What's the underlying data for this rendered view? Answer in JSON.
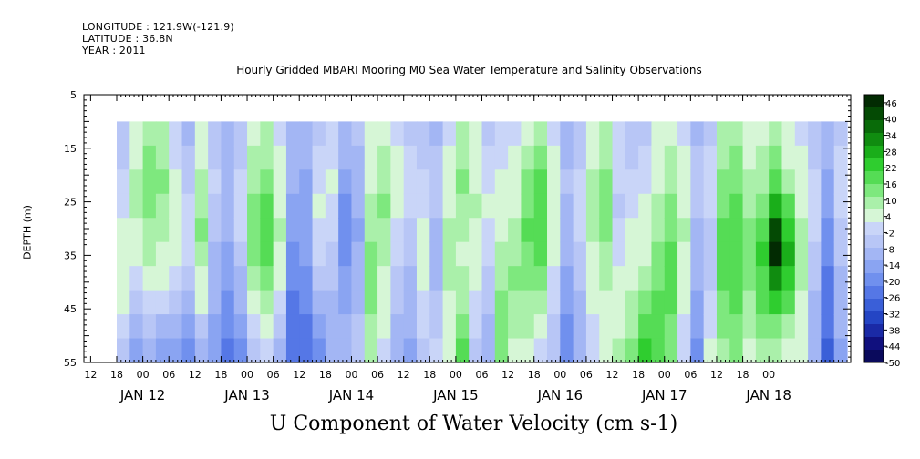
{
  "header": {
    "longitude": "LONGITUDE : 121.9W(-121.9)",
    "latitude": "LATITUDE : 36.8N",
    "year": "YEAR : 2011"
  },
  "chart_data": {
    "type": "heatmap",
    "title": "Hourly Gridded MBARI Mooring M0 Sea Water Temperature and Salinity Observations",
    "bottom_title": "U Component of Water Velocity (cm s-1)",
    "ylabel": "DEPTH (m)",
    "y_ticks": [
      5,
      15,
      25,
      35,
      45,
      55
    ],
    "y_range": [
      5,
      55
    ],
    "y_reversed": true,
    "data_depth_range": [
      10,
      55
    ],
    "x_range_hours": [
      0,
      168
    ],
    "x_hour_ticks": [
      "06",
      "12",
      "18",
      "00",
      "06",
      "12",
      "18",
      "00",
      "06",
      "12",
      "18",
      "00",
      "06",
      "12",
      "18",
      "00",
      "06",
      "12",
      "18",
      "00",
      "06",
      "12",
      "18",
      "00",
      "06",
      "12",
      "18",
      "00"
    ],
    "x_day_labels": [
      "JAN 12",
      "JAN 13",
      "JAN 14",
      "JAN 15",
      "JAN 16",
      "JAN 17",
      "JAN 18"
    ],
    "colorbar_ticks": [
      46,
      40,
      34,
      28,
      22,
      16,
      10,
      4,
      -2,
      -8,
      -14,
      -20,
      -26,
      -32,
      -38,
      -44,
      -50
    ],
    "colorbar_range": [
      -50,
      49
    ],
    "colorbar_colors": [
      "#0a0a5c",
      "#10107e",
      "#1a2aa6",
      "#2445c4",
      "#3a5fd8",
      "#5577e6",
      "#7090ee",
      "#8aa4f2",
      "#a3b6f4",
      "#b8c6f6",
      "#c9d5f8",
      "#d6f6d6",
      "#aaf0aa",
      "#7ee87e",
      "#55dc55",
      "#2fcd2f",
      "#1aae1a",
      "#108c10",
      "#096b09",
      "#044a04",
      "#022b02"
    ],
    "columns": [
      {
        "hour": 0,
        "values": [
          -6,
          -4,
          -2,
          0,
          2,
          4,
          6,
          4,
          0,
          -4
        ]
      },
      {
        "hour": 3,
        "values": [
          2,
          6,
          10,
          8,
          6,
          4,
          0,
          -6,
          -10,
          -14
        ]
      },
      {
        "hour": 6,
        "values": [
          10,
          12,
          14,
          12,
          10,
          8,
          4,
          0,
          -6,
          -10
        ]
      },
      {
        "hour": 9,
        "values": [
          8,
          10,
          12,
          10,
          8,
          6,
          2,
          -2,
          -8,
          -14
        ]
      },
      {
        "hour": 12,
        "values": [
          -2,
          0,
          2,
          4,
          6,
          4,
          0,
          -4,
          -10,
          -16
        ]
      },
      {
        "hour": 15,
        "values": [
          -8,
          -6,
          -4,
          -2,
          0,
          -2,
          -6,
          -10,
          -14,
          -18
        ]
      },
      {
        "hour": 18,
        "values": [
          2,
          6,
          8,
          10,
          12,
          10,
          6,
          2,
          -4,
          -8
        ]
      },
      {
        "hour": 21,
        "values": [
          -6,
          -4,
          -2,
          -4,
          -6,
          -8,
          -10,
          -12,
          -14,
          -16
        ]
      },
      {
        "hour": 24,
        "values": [
          -12,
          -10,
          -8,
          -10,
          -12,
          -14,
          -16,
          -18,
          -20,
          -22
        ]
      },
      {
        "hour": 27,
        "values": [
          -6,
          -4,
          -2,
          0,
          -2,
          -4,
          -8,
          -12,
          -16,
          -18
        ]
      },
      {
        "hour": 30,
        "values": [
          4,
          8,
          10,
          12,
          14,
          12,
          8,
          4,
          0,
          -4
        ]
      },
      {
        "hour": 33,
        "values": [
          8,
          10,
          12,
          16,
          18,
          16,
          12,
          8,
          4,
          0
        ]
      },
      {
        "hour": 36,
        "values": [
          0,
          2,
          4,
          6,
          8,
          6,
          2,
          -2,
          -6,
          -10
        ]
      },
      {
        "hour": 39,
        "values": [
          -8,
          -10,
          -12,
          -14,
          -16,
          -18,
          -20,
          -22,
          -24,
          -26
        ]
      },
      {
        "hour": 42,
        "values": [
          -10,
          -12,
          -14,
          -16,
          -14,
          -16,
          -18,
          -20,
          -22,
          -24
        ]
      },
      {
        "hour": 45,
        "values": [
          -4,
          -2,
          0,
          2,
          0,
          -2,
          -6,
          -10,
          -14,
          -18
        ]
      },
      {
        "hour": 48,
        "values": [
          -2,
          0,
          2,
          0,
          -2,
          -4,
          -6,
          -8,
          -10,
          -12
        ]
      },
      {
        "hour": 51,
        "values": [
          -10,
          -12,
          -16,
          -18,
          -20,
          -18,
          -16,
          -14,
          -12,
          -10
        ]
      },
      {
        "hour": 54,
        "values": [
          -6,
          -8,
          -10,
          -12,
          -14,
          -12,
          -10,
          -8,
          -6,
          -4
        ]
      },
      {
        "hour": 57,
        "values": [
          2,
          4,
          6,
          8,
          10,
          12,
          14,
          12,
          10,
          8
        ]
      },
      {
        "hour": 60,
        "values": [
          6,
          8,
          10,
          12,
          10,
          8,
          6,
          4,
          2,
          0
        ]
      },
      {
        "hour": 63,
        "values": [
          0,
          2,
          4,
          2,
          0,
          -2,
          -4,
          -6,
          -8,
          -10
        ]
      },
      {
        "hour": 66,
        "values": [
          -4,
          -2,
          0,
          -2,
          -4,
          -6,
          -8,
          -10,
          -12,
          -14
        ]
      },
      {
        "hour": 69,
        "values": [
          -6,
          -4,
          -2,
          0,
          2,
          4,
          2,
          0,
          -2,
          -4
        ]
      },
      {
        "hour": 72,
        "values": [
          -8,
          -6,
          -4,
          -6,
          -8,
          -10,
          -8,
          -6,
          -4,
          -2
        ]
      },
      {
        "hour": 75,
        "values": [
          0,
          2,
          4,
          6,
          8,
          10,
          8,
          6,
          4,
          2
        ]
      },
      {
        "hour": 78,
        "values": [
          8,
          10,
          12,
          10,
          8,
          6,
          8,
          10,
          12,
          16
        ]
      },
      {
        "hour": 81,
        "values": [
          2,
          4,
          6,
          8,
          6,
          4,
          2,
          0,
          -2,
          -4
        ]
      },
      {
        "hour": 84,
        "values": [
          -4,
          -2,
          0,
          2,
          0,
          -2,
          -4,
          -6,
          -8,
          -10
        ]
      },
      {
        "hour": 87,
        "values": [
          -2,
          0,
          2,
          4,
          6,
          8,
          10,
          12,
          14,
          12
        ]
      },
      {
        "hour": 90,
        "values": [
          0,
          2,
          4,
          6,
          8,
          10,
          12,
          10,
          8,
          6
        ]
      },
      {
        "hour": 93,
        "values": [
          4,
          8,
          12,
          14,
          16,
          14,
          12,
          10,
          8,
          6
        ]
      },
      {
        "hour": 96,
        "values": [
          8,
          12,
          16,
          18,
          20,
          16,
          12,
          8,
          4,
          0
        ]
      },
      {
        "hour": 99,
        "values": [
          0,
          2,
          4,
          6,
          4,
          2,
          0,
          -2,
          -4,
          -6
        ]
      },
      {
        "hour": 102,
        "values": [
          -10,
          -8,
          -6,
          -8,
          -10,
          -12,
          -14,
          -16,
          -18,
          -20
        ]
      },
      {
        "hour": 105,
        "values": [
          -6,
          -4,
          -2,
          0,
          -2,
          -4,
          -6,
          -8,
          -10,
          -12
        ]
      },
      {
        "hour": 108,
        "values": [
          4,
          6,
          8,
          10,
          8,
          6,
          4,
          2,
          0,
          -2
        ]
      },
      {
        "hour": 111,
        "values": [
          8,
          10,
          12,
          14,
          12,
          10,
          8,
          6,
          4,
          2
        ]
      },
      {
        "hour": 114,
        "values": [
          -2,
          0,
          -2,
          -4,
          -2,
          0,
          2,
          4,
          6,
          8
        ]
      },
      {
        "hour": 117,
        "values": [
          -6,
          -4,
          -2,
          0,
          2,
          4,
          6,
          8,
          10,
          12
        ]
      },
      {
        "hour": 120,
        "values": [
          -4,
          -2,
          0,
          2,
          4,
          6,
          10,
          14,
          18,
          22
        ]
      },
      {
        "hour": 123,
        "values": [
          2,
          4,
          6,
          8,
          10,
          12,
          14,
          16,
          18,
          20
        ]
      },
      {
        "hour": 126,
        "values": [
          6,
          8,
          10,
          12,
          14,
          16,
          18,
          16,
          14,
          12
        ]
      },
      {
        "hour": 129,
        "values": [
          0,
          2,
          4,
          6,
          8,
          6,
          4,
          2,
          0,
          -2
        ]
      },
      {
        "hour": 132,
        "values": [
          -8,
          -6,
          -4,
          -6,
          -8,
          -10,
          -12,
          -14,
          -16,
          -18
        ]
      },
      {
        "hour": 135,
        "values": [
          -4,
          -2,
          0,
          -2,
          -4,
          -6,
          -4,
          -2,
          0,
          2
        ]
      },
      {
        "hour": 138,
        "values": [
          8,
          10,
          12,
          14,
          16,
          18,
          16,
          14,
          12,
          10
        ]
      },
      {
        "hour": 141,
        "values": [
          10,
          12,
          14,
          16,
          18,
          20,
          18,
          16,
          14,
          12
        ]
      },
      {
        "hour": 144,
        "values": [
          4,
          6,
          8,
          10,
          12,
          14,
          12,
          10,
          8,
          6
        ]
      },
      {
        "hour": 147,
        "values": [
          6,
          8,
          10,
          14,
          20,
          24,
          20,
          16,
          12,
          8
        ]
      },
      {
        "hour": 150,
        "values": [
          8,
          12,
          18,
          28,
          40,
          48,
          34,
          22,
          14,
          8
        ]
      },
      {
        "hour": 153,
        "values": [
          4,
          6,
          10,
          16,
          24,
          28,
          22,
          16,
          10,
          4
        ]
      },
      {
        "hour": 156,
        "values": [
          0,
          2,
          4,
          6,
          8,
          10,
          8,
          6,
          4,
          2
        ]
      },
      {
        "hour": 159,
        "values": [
          -6,
          -4,
          -2,
          0,
          -2,
          -4,
          -6,
          -8,
          -10,
          -12
        ]
      },
      {
        "hour": 162,
        "values": [
          -10,
          -12,
          -14,
          -16,
          -18,
          -20,
          -22,
          -24,
          -26,
          -28
        ]
      },
      {
        "hour": 165,
        "values": [
          -4,
          -2,
          0,
          -2,
          -4,
          -6,
          -8,
          -10,
          -12,
          -14
        ]
      }
    ]
  }
}
